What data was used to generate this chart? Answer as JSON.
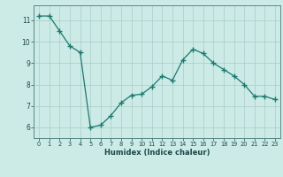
{
  "x": [
    0,
    1,
    2,
    3,
    4,
    5,
    6,
    7,
    8,
    9,
    10,
    11,
    12,
    13,
    14,
    15,
    16,
    17,
    18,
    19,
    20,
    21,
    22,
    23
  ],
  "y": [
    11.2,
    11.2,
    10.5,
    9.8,
    9.5,
    6.0,
    6.1,
    6.55,
    7.15,
    7.5,
    7.55,
    7.9,
    8.4,
    8.2,
    9.15,
    9.65,
    9.45,
    9.0,
    8.7,
    8.4,
    8.0,
    7.45,
    7.45,
    7.3
  ],
  "line_color": "#1a7a6e",
  "marker_color": "#1a7a6e",
  "bg_color": "#cceae6",
  "grid_color": "#aaccc8",
  "xlabel": "Humidex (Indice chaleur)",
  "ylim": [
    5.5,
    11.7
  ],
  "xlim": [
    -0.5,
    23.5
  ],
  "yticks": [
    6,
    7,
    8,
    9,
    10,
    11
  ],
  "xticks": [
    0,
    1,
    2,
    3,
    4,
    5,
    6,
    7,
    8,
    9,
    10,
    11,
    12,
    13,
    14,
    15,
    16,
    17,
    18,
    19,
    20,
    21,
    22,
    23
  ]
}
